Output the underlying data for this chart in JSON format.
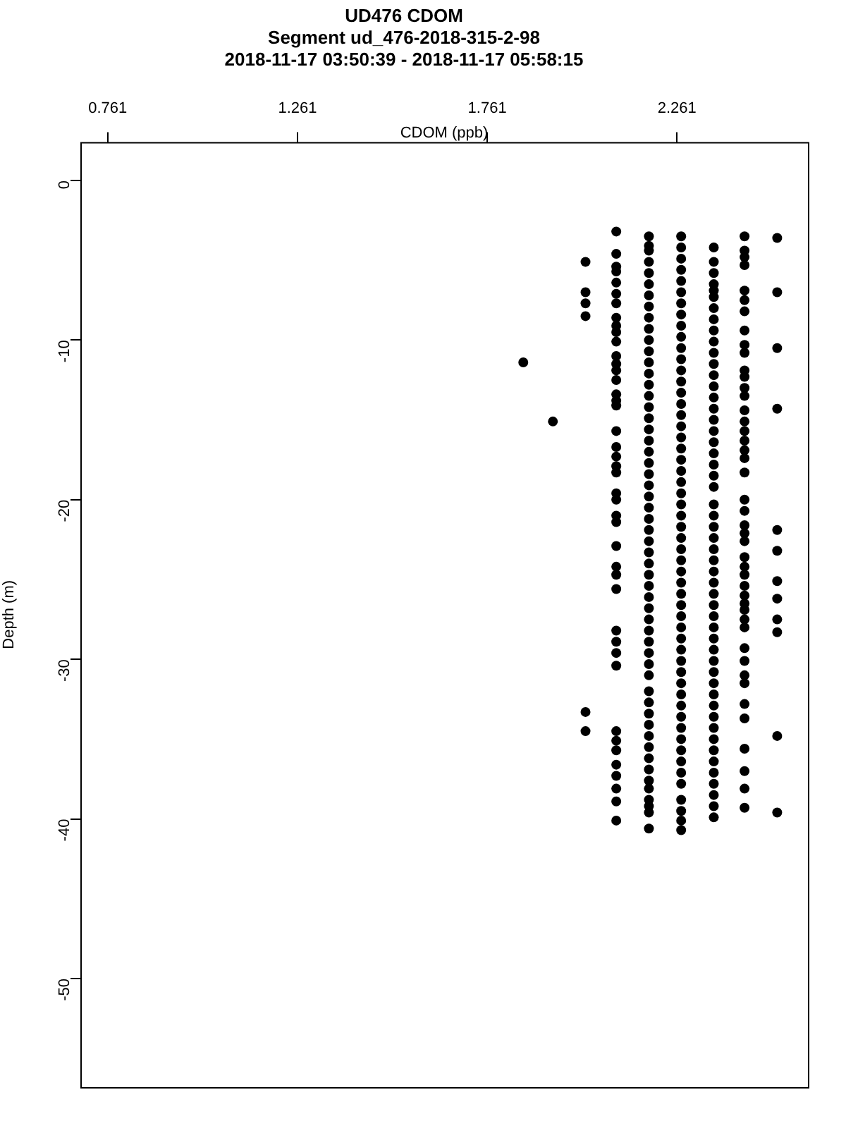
{
  "chart_data": {
    "type": "scatter",
    "title": "UD476 CDOM",
    "subtitle": "Segment ud_476-2018-315-2-98\n2018-11-17 03:50:39 - 2018-11-17 05:58:15",
    "xlabel": "CDOM (ppb)",
    "ylabel": "Depth (m)",
    "xlim": [
      0.689,
      2.606
    ],
    "xticks": [
      0.761,
      1.261,
      1.761,
      2.261
    ],
    "ylim": [
      -56.8,
      2.4
    ],
    "yticks": [
      0,
      -10,
      -20,
      -30,
      -40,
      -50
    ],
    "grid": false,
    "legend": false,
    "marker": "circle",
    "series": [
      {
        "color": "#000000",
        "x": [
          1.856
        ],
        "values": [
          -11.4
        ]
      },
      {
        "color": "#000000",
        "x": [
          1.934
        ],
        "values": [
          -15.1
        ]
      },
      {
        "color": "#000000",
        "x": [
          2.02,
          2.02,
          2.02,
          2.02,
          2.02,
          2.02
        ],
        "values": [
          -5.1,
          -7.0,
          -7.7,
          -8.5,
          -33.3,
          -34.5
        ]
      },
      {
        "color": "#000000",
        "x": [
          2.101,
          2.101,
          2.101,
          2.101,
          2.101,
          2.101,
          2.101,
          2.101,
          2.101,
          2.101,
          2.101,
          2.101,
          2.101,
          2.101,
          2.101,
          2.101,
          2.101,
          2.101,
          2.101,
          2.101,
          2.101,
          2.101,
          2.101,
          2.101,
          2.101,
          2.101,
          2.101,
          2.101,
          2.101,
          2.101,
          2.101,
          2.101,
          2.101,
          2.101,
          2.101,
          2.101,
          2.101,
          2.101,
          2.101,
          2.101,
          2.101,
          2.101,
          2.101
        ],
        "values": [
          -3.2,
          -4.6,
          -5.4,
          -5.7,
          -6.4,
          -7.1,
          -7.7,
          -8.6,
          -9.1,
          -9.5,
          -10.1,
          -11.0,
          -11.5,
          -11.9,
          -12.5,
          -13.4,
          -13.8,
          -14.1,
          -15.7,
          -16.7,
          -17.3,
          -17.9,
          -18.3,
          -19.6,
          -20.0,
          -21.0,
          -21.4,
          -22.9,
          -24.2,
          -24.7,
          -25.6,
          -28.2,
          -28.9,
          -29.6,
          -30.4,
          -34.5,
          -35.1,
          -35.7,
          -36.6,
          -37.3,
          -38.1,
          -38.9,
          -40.1
        ]
      },
      {
        "color": "#000000",
        "x": [
          2.187,
          2.187,
          2.187,
          2.187,
          2.187,
          2.187,
          2.187,
          2.187,
          2.187,
          2.187,
          2.187,
          2.187,
          2.187,
          2.187,
          2.187,
          2.187,
          2.187,
          2.187,
          2.187,
          2.187,
          2.187,
          2.187,
          2.187,
          2.187,
          2.187,
          2.187,
          2.187,
          2.187,
          2.187,
          2.187,
          2.187,
          2.187,
          2.187,
          2.187,
          2.187,
          2.187,
          2.187,
          2.187,
          2.187,
          2.187,
          2.187,
          2.187,
          2.187,
          2.187,
          2.187,
          2.187,
          2.187,
          2.187,
          2.187,
          2.187,
          2.187,
          2.187,
          2.187,
          2.187,
          2.187
        ],
        "values": [
          -3.5,
          -4.1,
          -4.4,
          -5.1,
          -5.8,
          -6.5,
          -7.2,
          -7.9,
          -8.6,
          -9.3,
          -10.0,
          -10.7,
          -11.4,
          -12.1,
          -12.8,
          -13.5,
          -14.2,
          -14.9,
          -15.6,
          -16.3,
          -17.0,
          -17.7,
          -18.4,
          -19.1,
          -19.8,
          -20.5,
          -21.2,
          -21.9,
          -22.6,
          -23.3,
          -24.0,
          -24.7,
          -25.4,
          -26.1,
          -26.8,
          -27.5,
          -28.2,
          -28.9,
          -29.6,
          -30.3,
          -31.0,
          -32.0,
          -32.7,
          -33.4,
          -34.1,
          -34.8,
          -35.5,
          -36.2,
          -36.9,
          -37.6,
          -38.1,
          -38.8,
          -39.2,
          -39.6,
          -40.6
        ]
      },
      {
        "color": "#000000",
        "x": [
          2.272,
          2.272,
          2.272,
          2.272,
          2.272,
          2.272,
          2.272,
          2.272,
          2.272,
          2.272,
          2.272,
          2.272,
          2.272,
          2.272,
          2.272,
          2.272,
          2.272,
          2.272,
          2.272,
          2.272,
          2.272,
          2.272,
          2.272,
          2.272,
          2.272,
          2.272,
          2.272,
          2.272,
          2.272,
          2.272,
          2.272,
          2.272,
          2.272,
          2.272,
          2.272,
          2.272,
          2.272,
          2.272,
          2.272,
          2.272,
          2.272,
          2.272,
          2.272,
          2.272,
          2.272,
          2.272,
          2.272,
          2.272,
          2.272,
          2.272,
          2.272,
          2.272,
          2.272,
          2.272
        ],
        "values": [
          -3.5,
          -4.2,
          -4.9,
          -5.6,
          -6.3,
          -7.0,
          -7.7,
          -8.4,
          -9.1,
          -9.8,
          -10.5,
          -11.2,
          -11.9,
          -12.6,
          -13.3,
          -14.0,
          -14.7,
          -15.4,
          -16.1,
          -16.8,
          -17.5,
          -18.2,
          -18.9,
          -19.6,
          -20.3,
          -21.0,
          -21.7,
          -22.4,
          -23.1,
          -23.8,
          -24.5,
          -25.2,
          -25.9,
          -26.6,
          -27.3,
          -28.0,
          -28.7,
          -29.4,
          -30.1,
          -30.8,
          -31.5,
          -32.2,
          -32.9,
          -33.6,
          -34.3,
          -35.0,
          -35.7,
          -36.4,
          -37.1,
          -37.8,
          -38.8,
          -39.5,
          -40.1,
          -40.7
        ]
      },
      {
        "color": "#000000",
        "x": [
          2.358,
          2.358,
          2.358,
          2.358,
          2.358,
          2.358,
          2.358,
          2.358,
          2.358,
          2.358,
          2.358,
          2.358,
          2.358,
          2.358,
          2.358,
          2.358,
          2.358,
          2.358,
          2.358,
          2.358,
          2.358,
          2.358,
          2.358,
          2.358,
          2.358,
          2.358,
          2.358,
          2.358,
          2.358,
          2.358,
          2.358,
          2.358,
          2.358,
          2.358,
          2.358,
          2.358,
          2.358,
          2.358,
          2.358,
          2.358,
          2.358,
          2.358,
          2.358,
          2.358,
          2.358,
          2.358,
          2.358,
          2.358,
          2.358,
          2.358,
          2.358,
          2.358
        ],
        "values": [
          -4.2,
          -5.1,
          -5.8,
          -6.5,
          -6.9,
          -7.3,
          -8.0,
          -8.7,
          -9.4,
          -10.1,
          -10.8,
          -11.5,
          -12.2,
          -12.9,
          -13.6,
          -14.3,
          -15.0,
          -15.7,
          -16.4,
          -17.1,
          -17.8,
          -18.5,
          -19.2,
          -20.3,
          -21.0,
          -21.7,
          -22.4,
          -23.1,
          -23.8,
          -24.5,
          -25.2,
          -25.9,
          -26.6,
          -27.3,
          -28.0,
          -28.7,
          -29.4,
          -30.1,
          -30.8,
          -31.5,
          -32.2,
          -32.9,
          -33.6,
          -34.3,
          -35.0,
          -35.7,
          -36.4,
          -37.1,
          -37.8,
          -38.5,
          -39.2,
          -39.9
        ]
      },
      {
        "color": "#000000",
        "x": [
          2.439,
          2.439,
          2.439,
          2.439,
          2.439,
          2.439,
          2.439,
          2.439,
          2.439,
          2.439,
          2.439,
          2.439,
          2.439,
          2.439,
          2.439,
          2.439,
          2.439,
          2.439,
          2.439,
          2.439,
          2.439,
          2.439,
          2.439,
          2.439,
          2.439,
          2.439,
          2.439,
          2.439,
          2.439,
          2.439,
          2.439,
          2.439,
          2.439,
          2.439,
          2.439,
          2.439,
          2.439,
          2.439,
          2.439,
          2.439,
          2.439,
          2.439,
          2.439,
          2.439,
          2.439
        ],
        "values": [
          -3.5,
          -4.4,
          -4.8,
          -5.3,
          -6.9,
          -7.5,
          -8.2,
          -9.4,
          -10.3,
          -10.8,
          -11.9,
          -12.3,
          -13.0,
          -13.5,
          -14.4,
          -15.1,
          -15.7,
          -16.3,
          -16.9,
          -17.4,
          -18.3,
          -20.0,
          -20.7,
          -21.6,
          -22.1,
          -22.6,
          -23.6,
          -24.2,
          -24.7,
          -25.4,
          -26.0,
          -26.5,
          -26.9,
          -27.5,
          -28.0,
          -29.3,
          -30.1,
          -31.0,
          -31.5,
          -32.8,
          -33.7,
          -35.6,
          -37.0,
          -38.1,
          -39.3
        ]
      },
      {
        "color": "#000000",
        "x": [
          2.525,
          2.525,
          2.525,
          2.525,
          2.525,
          2.525,
          2.525,
          2.525,
          2.525,
          2.525,
          2.525,
          2.525
        ],
        "values": [
          -3.6,
          -7.0,
          -10.5,
          -14.3,
          -21.9,
          -23.2,
          -25.1,
          -26.2,
          -27.5,
          -28.3,
          -34.8,
          -39.6
        ]
      }
    ]
  }
}
